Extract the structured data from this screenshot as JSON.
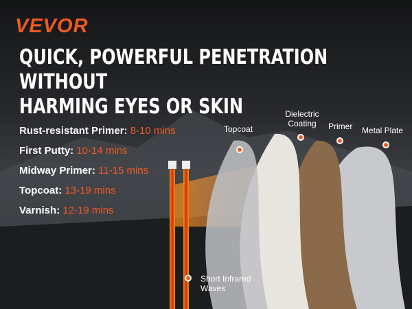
{
  "brand": "VEVOR",
  "title": [
    "QUICK, POWERFUL PENETRATION WITHOUT",
    "HARMING EYES OR SKIN"
  ],
  "specs": [
    {
      "label": "Rust-resistant Primer:",
      "value": "8-10 mins"
    },
    {
      "label": "First Putty:",
      "value": "10-14 mins"
    },
    {
      "label": "Midway Primer:",
      "value": "11-15 mins"
    },
    {
      "label": "Topcoat:",
      "value": "13-19 mins"
    },
    {
      "label": "Varnish:",
      "value": "12-19 mins"
    }
  ],
  "layers": {
    "topcoat": "Topcoat",
    "dielectric": "Dielectric Coating",
    "primer": "Primer",
    "metal": "Metal Plate"
  },
  "waves_label": "Short Infrared Waves",
  "colors": {
    "accent": "#ee5a22"
  }
}
